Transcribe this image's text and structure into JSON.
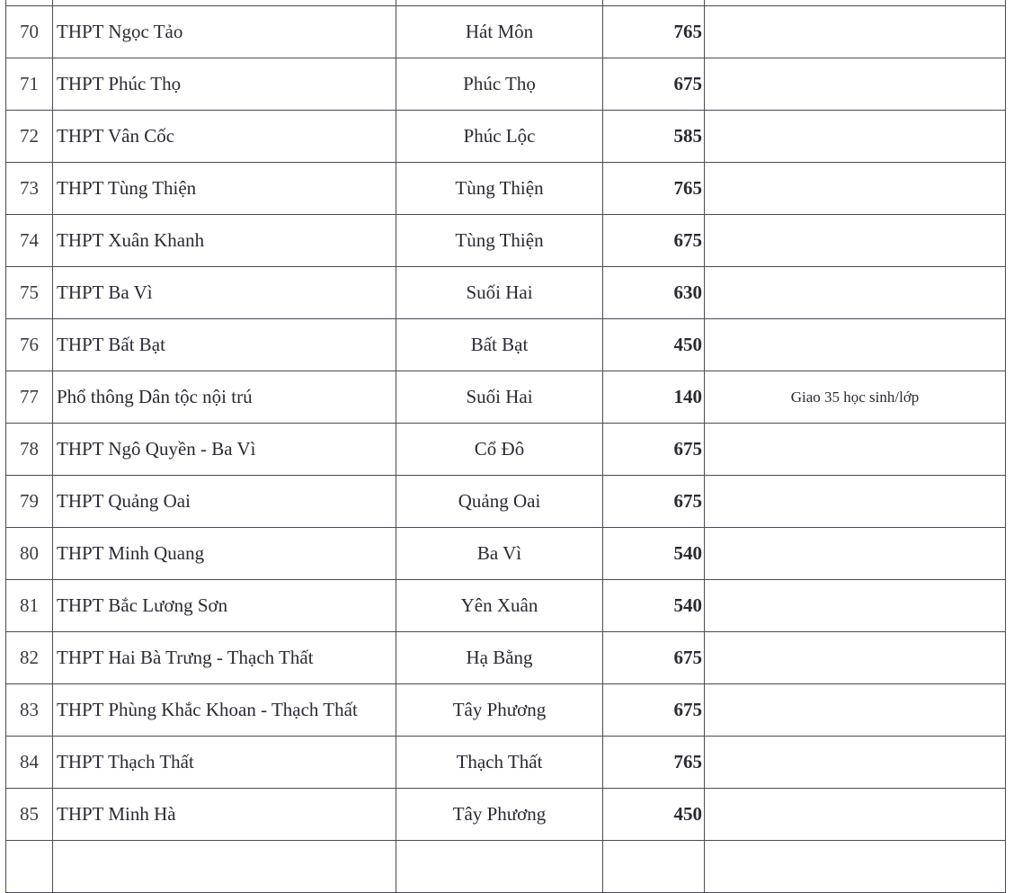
{
  "rows": [
    {
      "no": "70",
      "name": "THPT Ngọc Tảo",
      "location": "Hát Môn",
      "quota": "765",
      "note": ""
    },
    {
      "no": "71",
      "name": "THPT Phúc Thọ",
      "location": "Phúc Thọ",
      "quota": "675",
      "note": ""
    },
    {
      "no": "72",
      "name": "THPT Vân Cốc",
      "location": "Phúc Lộc",
      "quota": "585",
      "note": ""
    },
    {
      "no": "73",
      "name": "THPT Tùng Thiện",
      "location": "Tùng Thiện",
      "quota": "765",
      "note": ""
    },
    {
      "no": "74",
      "name": "THPT Xuân Khanh",
      "location": "Tùng Thiện",
      "quota": "675",
      "note": ""
    },
    {
      "no": "75",
      "name": "THPT Ba Vì",
      "location": "Suối Hai",
      "quota": "630",
      "note": ""
    },
    {
      "no": "76",
      "name": "THPT Bất Bạt",
      "location": "Bất Bạt",
      "quota": "450",
      "note": ""
    },
    {
      "no": "77",
      "name": "Phổ thông Dân tộc nội trú",
      "location": "Suối Hai",
      "quota": "140",
      "note": "Giao 35 học sinh/lớp"
    },
    {
      "no": "78",
      "name": "THPT Ngô Quyền - Ba Vì",
      "location": "Cổ Đô",
      "quota": "675",
      "note": ""
    },
    {
      "no": "79",
      "name": "THPT Quảng Oai",
      "location": "Quảng Oai",
      "quota": "675",
      "note": ""
    },
    {
      "no": "80",
      "name": "THPT Minh Quang",
      "location": "Ba Vì",
      "quota": "540",
      "note": ""
    },
    {
      "no": "81",
      "name": "THPT Bắc Lương Sơn",
      "location": "Yên Xuân",
      "quota": "540",
      "note": ""
    },
    {
      "no": "82",
      "name": "THPT Hai Bà Trưng - Thạch Thất",
      "location": "Hạ Bằng",
      "quota": "675",
      "note": ""
    },
    {
      "no": "83",
      "name": "THPT Phùng Khắc Khoan - Thạch Thất",
      "location": "Tây Phương",
      "quota": "675",
      "note": ""
    },
    {
      "no": "84",
      "name": "THPT Thạch Thất",
      "location": "Thạch Thất",
      "quota": "765",
      "note": ""
    },
    {
      "no": "85",
      "name": "THPT Minh Hà",
      "location": "Tây Phương",
      "quota": "450",
      "note": ""
    }
  ]
}
